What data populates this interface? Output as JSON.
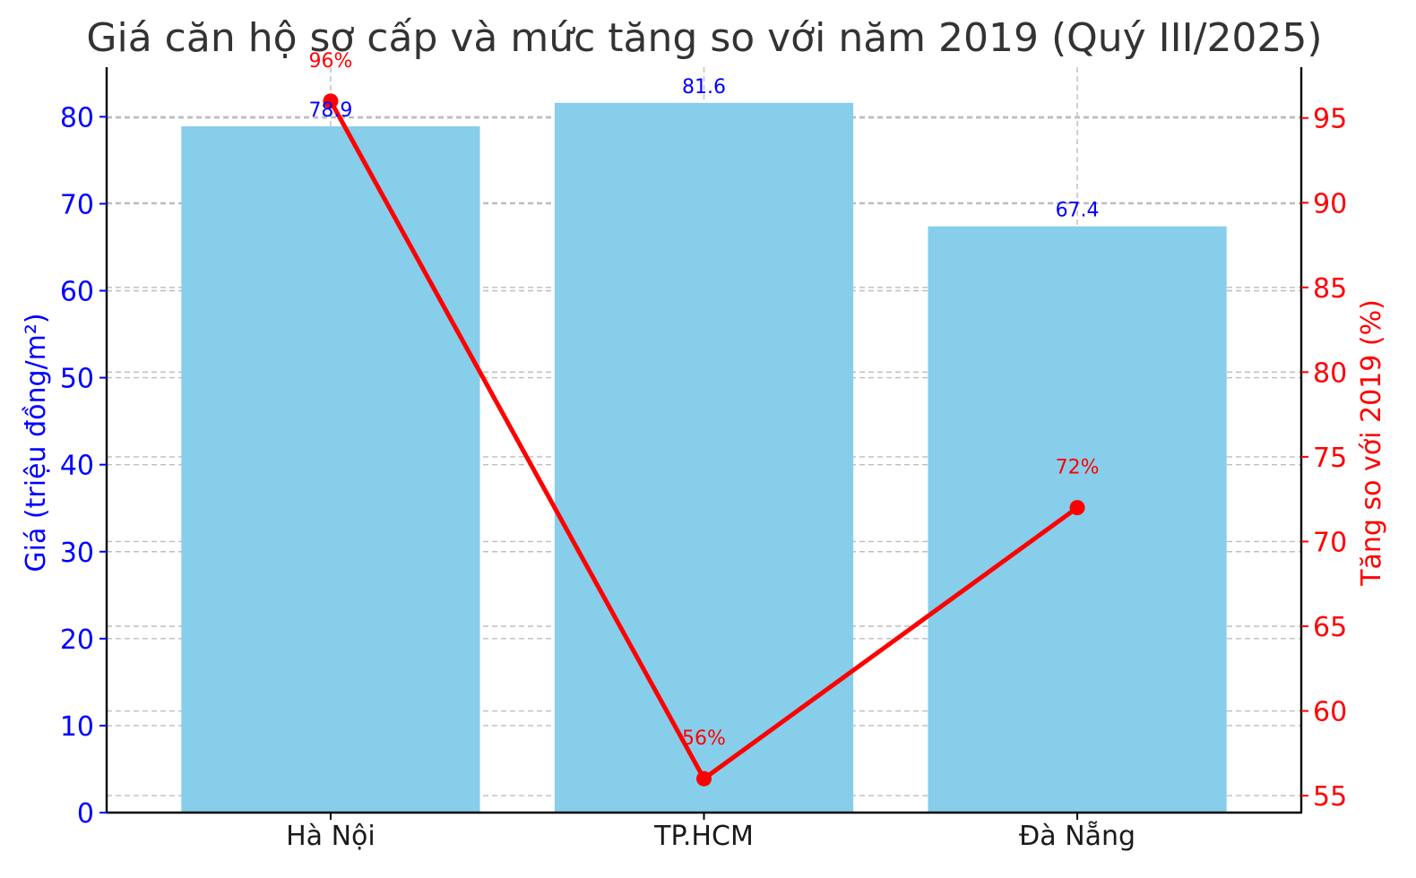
{
  "chart_data": {
    "type": "bar+line",
    "title": "Giá căn hộ sơ cấp và mức tăng so với năm 2019 (Quý III/2025)",
    "categories": [
      "Hà Nội",
      "TP.HCM",
      "Đà Nẵng"
    ],
    "bar_series": {
      "values": [
        78.9,
        81.6,
        67.4
      ],
      "labels": [
        "78.9",
        "81.6",
        "67.4"
      ],
      "color": "#87ceeb"
    },
    "line_series": {
      "values": [
        96,
        56,
        72
      ],
      "labels": [
        "96%",
        "56%",
        "72%"
      ],
      "color": "#ff0000"
    },
    "ylabel_left": "Giá (triệu đồng/m²)",
    "ylabel_right": "Tăng so với 2019 (%)",
    "ylim_left": [
      0,
      85.7
    ],
    "yticks_left": [
      0,
      10,
      20,
      30,
      40,
      50,
      60,
      70,
      80
    ],
    "ylim_right": [
      54,
      98
    ],
    "yticks_right": [
      55,
      60,
      65,
      70,
      75,
      80,
      85,
      90,
      95
    ],
    "grid": true,
    "left_axis_color": "#0000ff",
    "right_axis_color": "#ff0000"
  }
}
